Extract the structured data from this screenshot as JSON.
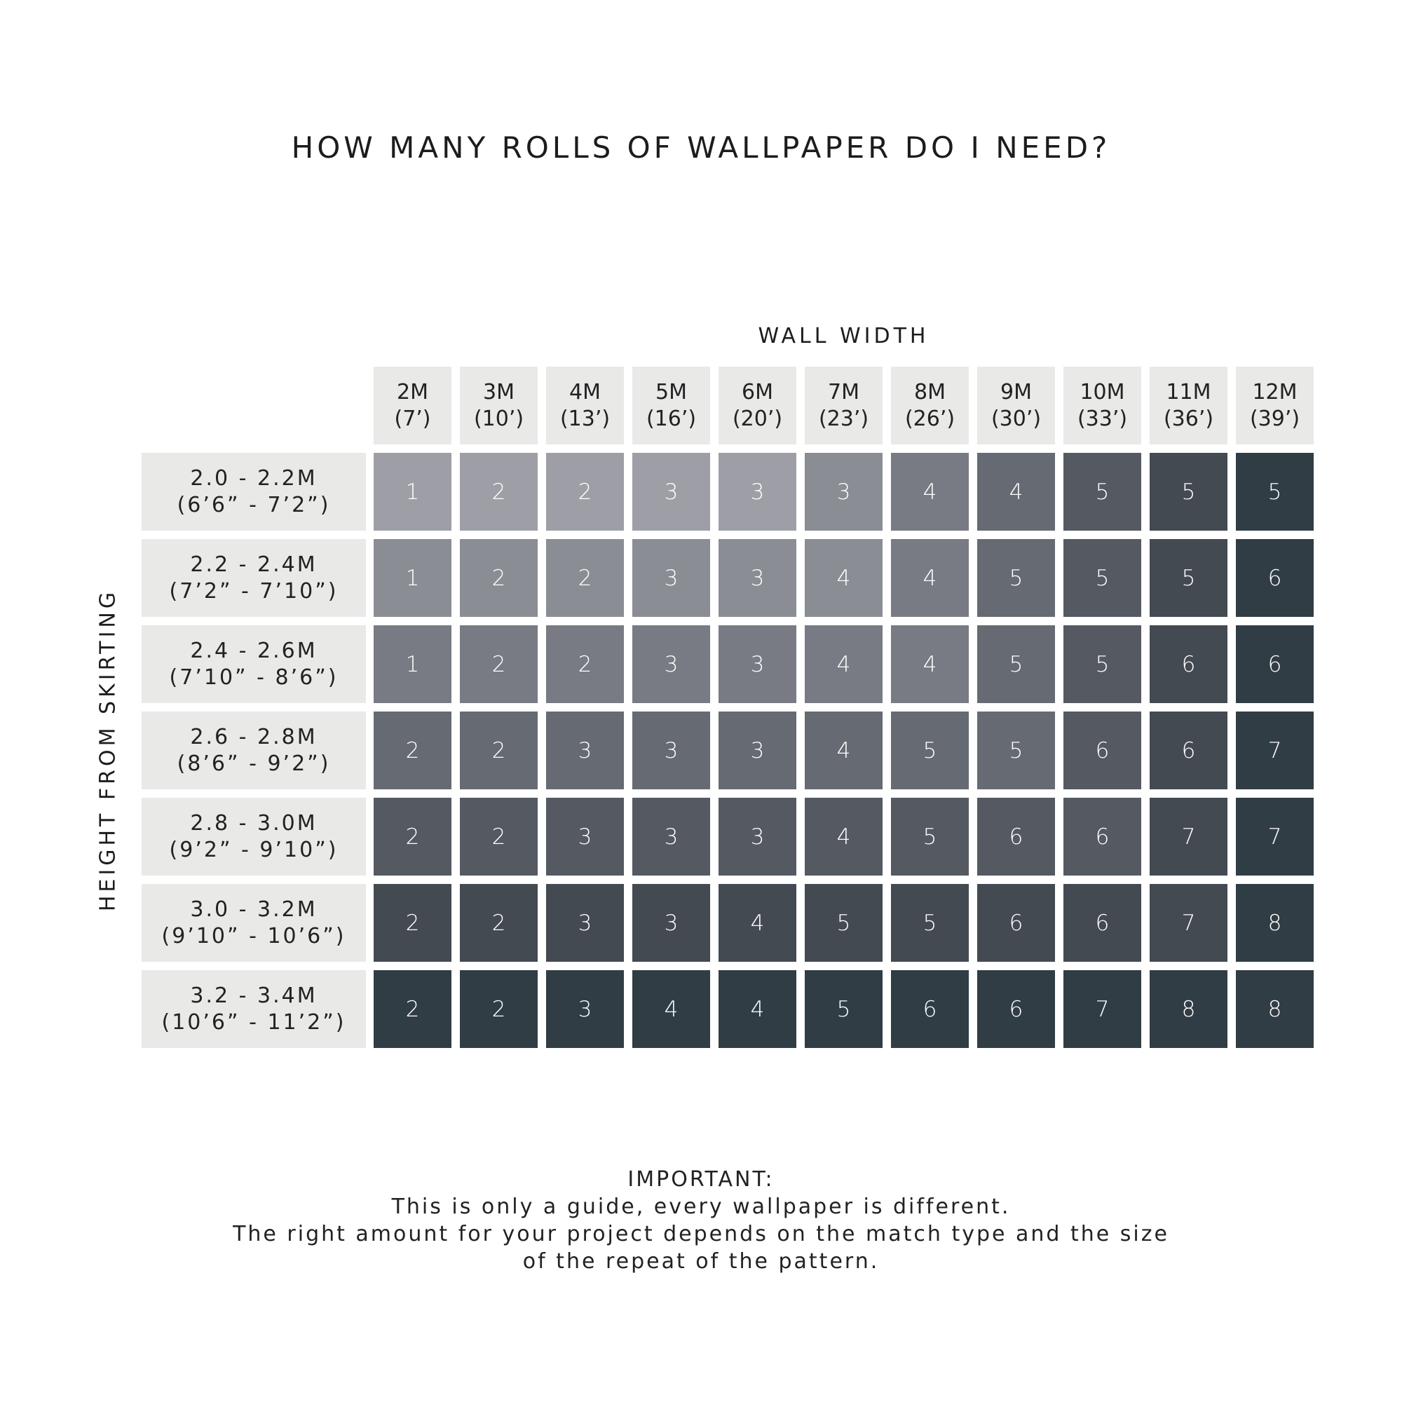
{
  "chart_data": {
    "type": "heatmap",
    "title": "HOW MANY ROLLS OF WALLPAPER DO I NEED?",
    "xlabel": "WALL WIDTH",
    "ylabel": "HEIGHT FROM SKIRTING",
    "columns": [
      {
        "metric": "2M",
        "imperial": "(7’)"
      },
      {
        "metric": "3M",
        "imperial": "(10’)"
      },
      {
        "metric": "4M",
        "imperial": "(13’)"
      },
      {
        "metric": "5M",
        "imperial": "(16’)"
      },
      {
        "metric": "6M",
        "imperial": "(20’)"
      },
      {
        "metric": "7M",
        "imperial": "(23’)"
      },
      {
        "metric": "8M",
        "imperial": "(26’)"
      },
      {
        "metric": "9M",
        "imperial": "(30’)"
      },
      {
        "metric": "10M",
        "imperial": "(33’)"
      },
      {
        "metric": "11M",
        "imperial": "(36’)"
      },
      {
        "metric": "12M",
        "imperial": "(39’)"
      }
    ],
    "rows": [
      {
        "metric": "2.0 - 2.2M",
        "imperial": "(6’6” - 7’2”)",
        "values": [
          1,
          2,
          2,
          3,
          3,
          3,
          4,
          4,
          5,
          5,
          5
        ],
        "shades": [
          0,
          0,
          0,
          0,
          0,
          1,
          2,
          3,
          4,
          5,
          6
        ]
      },
      {
        "metric": "2.2 - 2.4M",
        "imperial": "(7’2” - 7’10”)",
        "values": [
          1,
          2,
          2,
          3,
          3,
          4,
          4,
          5,
          5,
          5,
          6
        ],
        "shades": [
          1,
          1,
          1,
          1,
          1,
          1,
          2,
          3,
          4,
          5,
          6
        ]
      },
      {
        "metric": "2.4 - 2.6M",
        "imperial": "(7’10” - 8’6”)",
        "values": [
          1,
          2,
          2,
          3,
          3,
          4,
          4,
          5,
          5,
          6,
          6
        ],
        "shades": [
          2,
          2,
          2,
          2,
          2,
          2,
          2,
          3,
          4,
          5,
          6
        ]
      },
      {
        "metric": "2.6 - 2.8M",
        "imperial": "(8’6” - 9’2”)",
        "values": [
          2,
          2,
          3,
          3,
          3,
          4,
          5,
          5,
          6,
          6,
          7
        ],
        "shades": [
          3,
          3,
          3,
          3,
          3,
          3,
          3,
          3,
          4,
          5,
          6
        ]
      },
      {
        "metric": "2.8 - 3.0M",
        "imperial": "(9’2” - 9’10”)",
        "values": [
          2,
          2,
          3,
          3,
          3,
          4,
          5,
          6,
          6,
          7,
          7
        ],
        "shades": [
          4,
          4,
          4,
          4,
          4,
          4,
          4,
          4,
          4,
          5,
          6
        ]
      },
      {
        "metric": "3.0 - 3.2M",
        "imperial": "(9’10” - 10’6”)",
        "values": [
          2,
          2,
          3,
          3,
          4,
          5,
          5,
          6,
          6,
          7,
          8
        ],
        "shades": [
          5,
          5,
          5,
          5,
          5,
          5,
          5,
          5,
          5,
          5,
          6
        ]
      },
      {
        "metric": "3.2 - 3.4M",
        "imperial": "(10’6” - 11’2”)",
        "values": [
          2,
          2,
          3,
          4,
          4,
          5,
          6,
          6,
          7,
          8,
          8
        ],
        "shades": [
          6,
          6,
          6,
          6,
          6,
          6,
          6,
          6,
          6,
          6,
          6
        ]
      }
    ],
    "palette": [
      "#9e9fa6",
      "#8a8d94",
      "#787b83",
      "#666a72",
      "#545962",
      "#434a52",
      "#313d45"
    ],
    "header_bg": "#e9e9e8"
  },
  "footer": {
    "heading": "IMPORTANT:",
    "lines": [
      "This is only a guide, every wallpaper is different.",
      "The right amount for your project depends on the match type and the size",
      "of the repeat of the pattern."
    ]
  }
}
